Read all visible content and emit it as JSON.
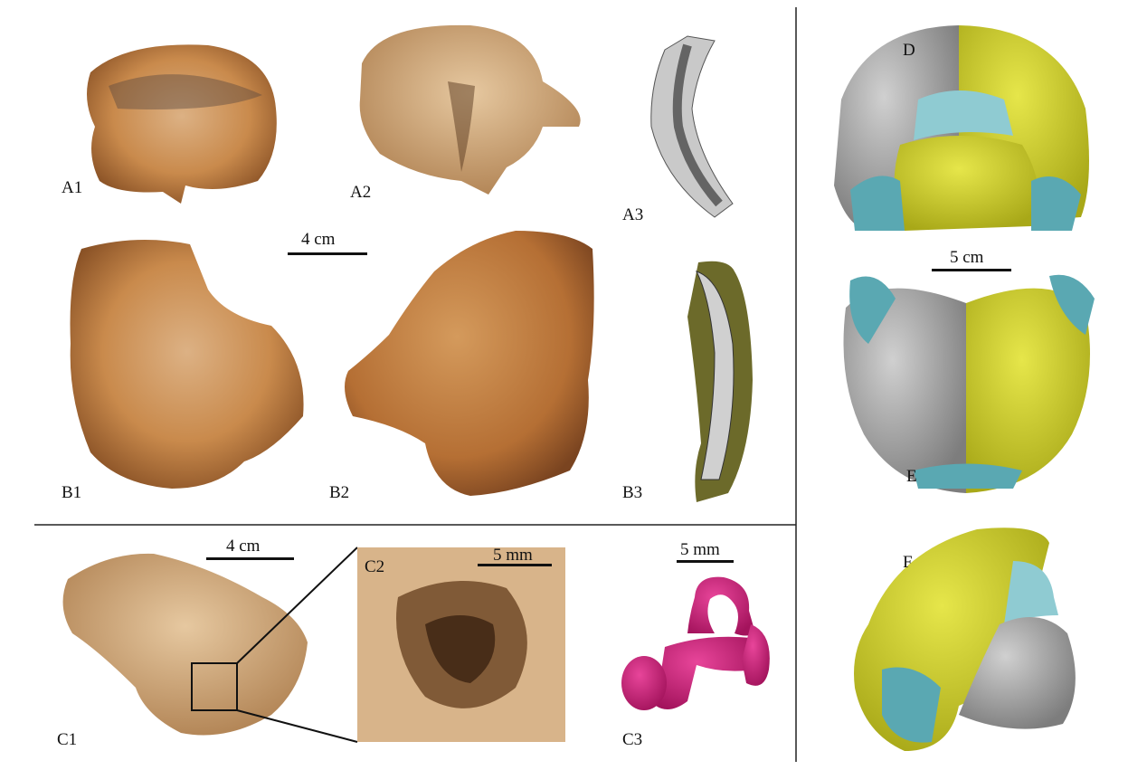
{
  "panels": {
    "A1": "A1",
    "A2": "A2",
    "A3": "A3",
    "B1": "B1",
    "B2": "B2",
    "B3": "B3",
    "C1": "C1",
    "C2": "C2",
    "C3": "C3",
    "D": "D",
    "E": "E",
    "F": "F"
  },
  "scale_bars": {
    "ab": "4 cm",
    "c1": "4 cm",
    "c2": "5 mm",
    "c3": "5 mm",
    "de": "5 cm"
  },
  "colors": {
    "bone": "#c98a4c",
    "bone_dark": "#8a5226",
    "bone_light": "#dcb184",
    "skull_gray": "#a9a9a9",
    "skull_yellow": "#d6d62b",
    "skull_teal": "#5aa8b2",
    "labyrinth": "#d01f7c"
  }
}
